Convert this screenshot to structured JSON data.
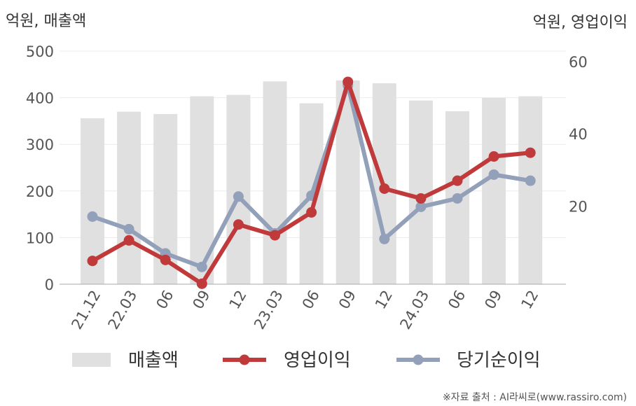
{
  "chart_data": {
    "type": "bar+line",
    "left_unit": "억원, 매출액",
    "right_unit": "억원, 영업이익",
    "categories": [
      "21.12",
      "22.03",
      "06",
      "09",
      "12",
      "23.03",
      "06",
      "09",
      "12",
      "24.03",
      "06",
      "09",
      "12"
    ],
    "y_left": {
      "min": 0,
      "max": 500,
      "ticks": [
        0,
        100,
        200,
        300,
        400,
        500
      ]
    },
    "y_right": {
      "min": -1.6,
      "max": 62.9,
      "ticks": [
        20,
        40,
        60
      ]
    },
    "series": [
      {
        "name": "매출액",
        "type": "bar",
        "axis": "left",
        "color": "#e0e0e0",
        "values": [
          356,
          370,
          365,
          403,
          406,
          435,
          388,
          437,
          431,
          394,
          371,
          400,
          403
        ]
      },
      {
        "name": "영업이익",
        "type": "line",
        "axis": "left",
        "color": "#c0393b",
        "values": [
          50,
          94,
          52,
          1,
          128,
          105,
          154,
          434,
          205,
          184,
          222,
          274,
          282
        ]
      },
      {
        "name": "당기순이익",
        "type": "line",
        "axis": "left",
        "color": "#93a0b9",
        "values": [
          145,
          118,
          66,
          37,
          188,
          109,
          190,
          427,
          97,
          166,
          184,
          235,
          222
        ]
      }
    ],
    "grid": true,
    "legend": "bottom"
  },
  "source": "※자료 출처 : AI라씨로(www.rassiro.com)"
}
